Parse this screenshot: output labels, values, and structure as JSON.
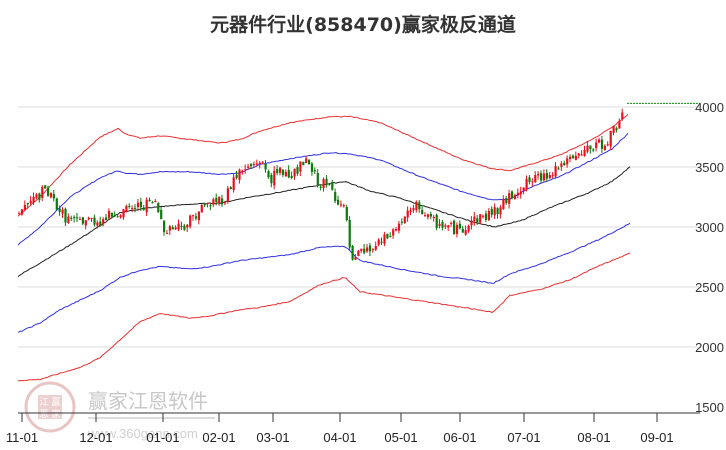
{
  "title": "元器件行业(858470)赢家极反通道",
  "watermark": {
    "text": "赢家江恩软件",
    "url": "www.360gann.com",
    "seal": [
      "江",
      "赢",
      "恩",
      "家"
    ]
  },
  "colors": {
    "up": "#e8101a",
    "down": "#0a7a0a",
    "outer_band": "#e83030",
    "inner_band": "#3030e0",
    "mid_line": "#222222",
    "grid": "#dddddd",
    "last_price_line": "#0a8a0a"
  },
  "chart_data": {
    "type": "candlestick",
    "title": "元器件行业(858470)赢家极反通道",
    "xlabel": "",
    "ylabel": "",
    "ylim": [
      1500,
      4100
    ],
    "y_ticks": [
      4000,
      3500,
      3000,
      2500,
      2000,
      1500
    ],
    "x_ticks": [
      "11-01",
      "12-01",
      "01-01",
      "02-01",
      "03-01",
      "04-01",
      "05-01",
      "06-01",
      "07-01",
      "08-01",
      "09-01"
    ],
    "grid": true,
    "legend": "none",
    "last_price": 4030,
    "series": [
      {
        "name": "upper_outer_band",
        "color": "red",
        "points": [
          [
            18,
            3090
          ],
          [
            40,
            3250
          ],
          [
            70,
            3520
          ],
          [
            100,
            3750
          ],
          [
            118,
            3820
          ],
          [
            125,
            3780
          ],
          [
            140,
            3740
          ],
          [
            160,
            3760
          ],
          [
            190,
            3730
          ],
          [
            220,
            3700
          ],
          [
            240,
            3730
          ],
          [
            260,
            3800
          ],
          [
            290,
            3870
          ],
          [
            330,
            3920
          ],
          [
            350,
            3920
          ],
          [
            380,
            3870
          ],
          [
            420,
            3720
          ],
          [
            460,
            3570
          ],
          [
            490,
            3490
          ],
          [
            510,
            3470
          ],
          [
            530,
            3520
          ],
          [
            560,
            3600
          ],
          [
            590,
            3720
          ],
          [
            612,
            3830
          ],
          [
            628,
            3940
          ]
        ]
      },
      {
        "name": "upper_inner_band",
        "color": "blue",
        "points": [
          [
            18,
            2850
          ],
          [
            40,
            3000
          ],
          [
            70,
            3250
          ],
          [
            100,
            3410
          ],
          [
            118,
            3470
          ],
          [
            125,
            3450
          ],
          [
            140,
            3440
          ],
          [
            160,
            3460
          ],
          [
            190,
            3460
          ],
          [
            220,
            3440
          ],
          [
            240,
            3450
          ],
          [
            260,
            3520
          ],
          [
            290,
            3570
          ],
          [
            330,
            3620
          ],
          [
            350,
            3610
          ],
          [
            380,
            3560
          ],
          [
            420,
            3420
          ],
          [
            460,
            3300
          ],
          [
            490,
            3230
          ],
          [
            510,
            3230
          ],
          [
            530,
            3330
          ],
          [
            560,
            3420
          ],
          [
            590,
            3550
          ],
          [
            612,
            3650
          ],
          [
            628,
            3780
          ]
        ]
      },
      {
        "name": "middle_line",
        "color": "black",
        "points": [
          [
            18,
            2590
          ],
          [
            40,
            2700
          ],
          [
            70,
            2850
          ],
          [
            100,
            3010
          ],
          [
            120,
            3120
          ],
          [
            140,
            3150
          ],
          [
            160,
            3170
          ],
          [
            190,
            3190
          ],
          [
            220,
            3200
          ],
          [
            250,
            3250
          ],
          [
            280,
            3290
          ],
          [
            320,
            3350
          ],
          [
            345,
            3380
          ],
          [
            370,
            3300
          ],
          [
            400,
            3240
          ],
          [
            440,
            3130
          ],
          [
            470,
            3050
          ],
          [
            495,
            3000
          ],
          [
            520,
            3050
          ],
          [
            550,
            3160
          ],
          [
            590,
            3290
          ],
          [
            612,
            3380
          ],
          [
            630,
            3500
          ]
        ]
      },
      {
        "name": "lower_inner_band",
        "color": "blue",
        "points": [
          [
            18,
            2120
          ],
          [
            40,
            2200
          ],
          [
            60,
            2310
          ],
          [
            80,
            2390
          ],
          [
            100,
            2470
          ],
          [
            120,
            2580
          ],
          [
            140,
            2640
          ],
          [
            160,
            2670
          ],
          [
            190,
            2650
          ],
          [
            210,
            2670
          ],
          [
            240,
            2720
          ],
          [
            260,
            2740
          ],
          [
            290,
            2770
          ],
          [
            320,
            2830
          ],
          [
            345,
            2840
          ],
          [
            360,
            2720
          ],
          [
            400,
            2650
          ],
          [
            440,
            2590
          ],
          [
            470,
            2560
          ],
          [
            493,
            2530
          ],
          [
            510,
            2610
          ],
          [
            540,
            2690
          ],
          [
            570,
            2790
          ],
          [
            600,
            2900
          ],
          [
            630,
            3030
          ]
        ]
      },
      {
        "name": "lower_outer_band",
        "color": "red",
        "points": [
          [
            18,
            1720
          ],
          [
            40,
            1730
          ],
          [
            60,
            1780
          ],
          [
            80,
            1830
          ],
          [
            100,
            1910
          ],
          [
            120,
            2060
          ],
          [
            140,
            2210
          ],
          [
            160,
            2280
          ],
          [
            190,
            2240
          ],
          [
            210,
            2260
          ],
          [
            240,
            2310
          ],
          [
            260,
            2330
          ],
          [
            290,
            2380
          ],
          [
            320,
            2520
          ],
          [
            345,
            2580
          ],
          [
            360,
            2460
          ],
          [
            400,
            2410
          ],
          [
            440,
            2360
          ],
          [
            470,
            2320
          ],
          [
            493,
            2290
          ],
          [
            510,
            2430
          ],
          [
            540,
            2480
          ],
          [
            570,
            2560
          ],
          [
            600,
            2680
          ],
          [
            630,
            2780
          ]
        ]
      },
      {
        "name": "price_close",
        "color": "red/green candles",
        "points": [
          [
            18,
            3130
          ],
          [
            30,
            3200
          ],
          [
            45,
            3310
          ],
          [
            55,
            3200
          ],
          [
            65,
            3080
          ],
          [
            75,
            3040
          ],
          [
            85,
            3060
          ],
          [
            100,
            3050
          ],
          [
            115,
            3120
          ],
          [
            125,
            3130
          ],
          [
            140,
            3180
          ],
          [
            155,
            3200
          ],
          [
            165,
            2980
          ],
          [
            175,
            3000
          ],
          [
            185,
            3020
          ],
          [
            200,
            3150
          ],
          [
            215,
            3220
          ],
          [
            225,
            3240
          ],
          [
            235,
            3430
          ],
          [
            250,
            3500
          ],
          [
            260,
            3560
          ],
          [
            270,
            3400
          ],
          [
            280,
            3460
          ],
          [
            295,
            3450
          ],
          [
            305,
            3550
          ],
          [
            318,
            3380
          ],
          [
            330,
            3330
          ],
          [
            345,
            3130
          ],
          [
            352,
            2680
          ],
          [
            360,
            2780
          ],
          [
            375,
            2830
          ],
          [
            390,
            2930
          ],
          [
            405,
            3080
          ],
          [
            418,
            3180
          ],
          [
            430,
            3050
          ],
          [
            445,
            3010
          ],
          [
            460,
            2970
          ],
          [
            472,
            3060
          ],
          [
            485,
            3090
          ],
          [
            500,
            3160
          ],
          [
            515,
            3300
          ],
          [
            530,
            3380
          ],
          [
            545,
            3430
          ],
          [
            560,
            3520
          ],
          [
            575,
            3560
          ],
          [
            590,
            3660
          ],
          [
            605,
            3700
          ],
          [
            617,
            3850
          ],
          [
            625,
            4030
          ]
        ]
      }
    ]
  }
}
